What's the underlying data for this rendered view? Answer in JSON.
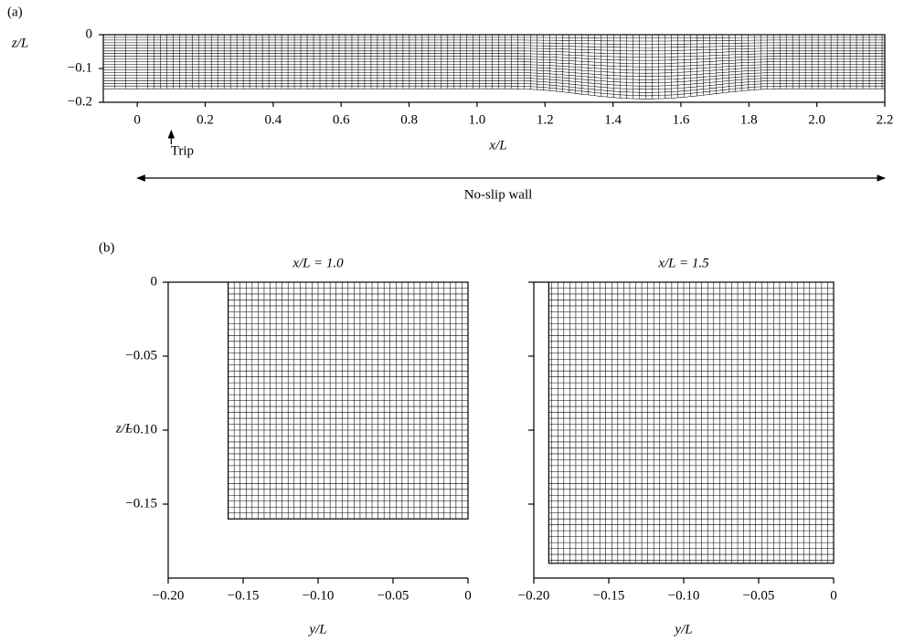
{
  "panel_a": {
    "label": "(a)",
    "xlabel": "x/L",
    "ylabel": "z/L",
    "xlim": [
      -0.1,
      2.2
    ],
    "ylim": [
      -0.2,
      0
    ],
    "xticks": [
      0,
      0.2,
      0.4,
      0.6,
      0.8,
      {
        "value": 1,
        "label": "1.0"
      },
      1.2,
      1.4,
      1.6,
      1.8,
      {
        "value": 2,
        "label": "2.0"
      },
      2.2
    ],
    "yticks": [
      0,
      {
        "value": -0.1,
        "label": "−0.1"
      },
      {
        "value": -0.2,
        "label": "−0.2"
      }
    ],
    "trip": {
      "label": "Trip",
      "x": 0.1
    },
    "wall": {
      "label": "No-slip wall",
      "x": [
        0,
        2.2
      ]
    },
    "mesh": {
      "depth": -0.16,
      "bump_depth": -0.19,
      "bump_x": [
        1.1,
        1.9
      ]
    }
  },
  "panel_b": {
    "label": "(b)",
    "ylabel": "z/L",
    "xlim": [
      -0.2,
      0
    ],
    "ylim": [
      -0.2,
      0
    ],
    "yticks": [
      0,
      {
        "value": -0.05,
        "label": "−0.05"
      },
      {
        "value": -0.1,
        "label": "−0.10"
      },
      {
        "value": -0.15,
        "label": "−0.15"
      }
    ],
    "plots": [
      {
        "title": "x/L = 1.0",
        "xlabel": "y/L",
        "xticks": [
          {
            "value": -0.2,
            "label": "−0.20"
          },
          {
            "value": -0.15,
            "label": "−0.15"
          },
          {
            "value": -0.1,
            "label": "−0.10"
          },
          {
            "value": -0.05,
            "label": "−0.05"
          },
          0
        ],
        "mesh": {
          "ymin": -0.16,
          "zmin": -0.16
        }
      },
      {
        "title": "x/L = 1.5",
        "xlabel": "y/L",
        "xticks": [
          {
            "value": -0.2,
            "label": "−0.20"
          },
          {
            "value": -0.15,
            "label": "−0.15"
          },
          {
            "value": -0.1,
            "label": "−0.10"
          },
          {
            "value": -0.05,
            "label": "−0.05"
          },
          0
        ],
        "mesh": {
          "ymin": -0.19,
          "zmin": -0.19
        }
      }
    ]
  }
}
